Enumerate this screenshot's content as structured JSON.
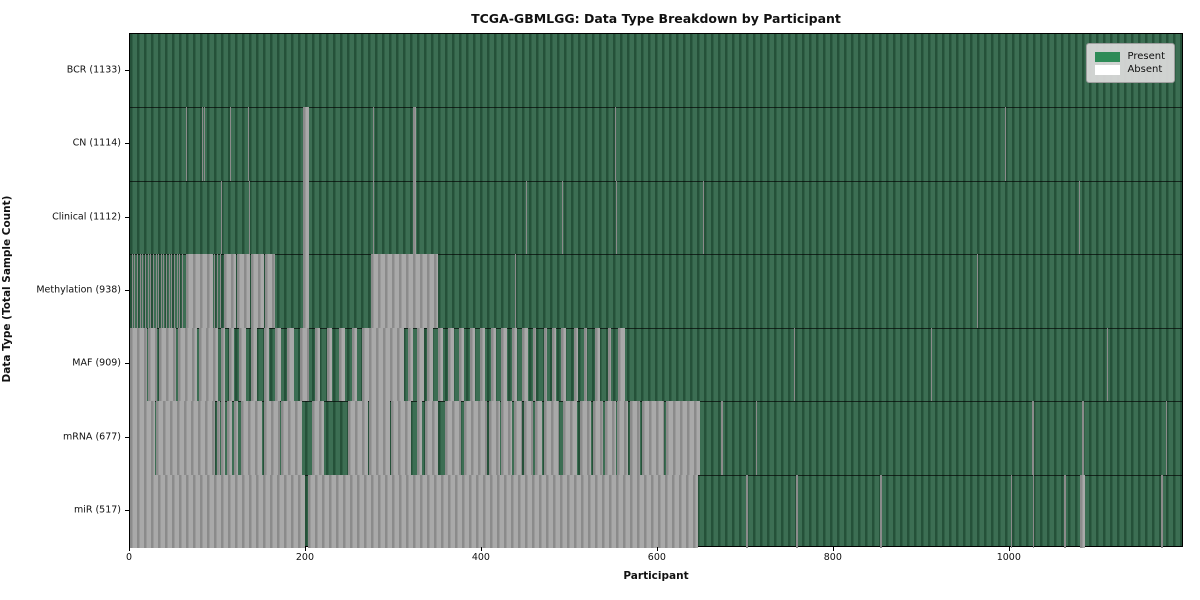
{
  "chart_data": {
    "type": "heatmap",
    "title": "TCGA-GBMLGG: Data Type Breakdown by Participant",
    "xlabel": "Participant",
    "ylabel": "Data Type (Total Sample Count)",
    "x_max": 1198,
    "x_ticks": [
      0,
      200,
      400,
      600,
      800,
      1000
    ],
    "grid": false,
    "legend_position": "upper right",
    "legend": [
      {
        "label": "Present",
        "color": "#2e8b57"
      },
      {
        "label": "Absent",
        "color": "#ffffff"
      }
    ],
    "colors": {
      "present_light": "#3c6e53",
      "present_dark": "#255139",
      "absent_light": "#a9a9a9",
      "absent_dark": "#8b8b8b"
    },
    "rows": [
      {
        "label": "BCR (1133)",
        "data_type": "BCR",
        "count": 1133,
        "absent_intervals": []
      },
      {
        "label": "CN (1114)",
        "data_type": "CN",
        "count": 1114,
        "absent_intervals": [
          [
            64,
            65
          ],
          [
            82,
            83
          ],
          [
            84,
            85
          ],
          [
            114,
            115
          ],
          [
            134,
            135
          ],
          [
            197,
            203
          ],
          [
            276,
            277
          ],
          [
            322,
            325
          ],
          [
            551,
            552
          ],
          [
            995,
            996
          ]
        ]
      },
      {
        "label": "Clinical (1112)",
        "data_type": "Clinical",
        "count": 1112,
        "absent_intervals": [
          [
            104,
            105
          ],
          [
            135,
            136
          ],
          [
            197,
            203
          ],
          [
            276,
            277
          ],
          [
            322,
            325
          ],
          [
            450,
            451
          ],
          [
            491,
            492
          ],
          [
            552,
            553
          ],
          [
            651,
            652
          ],
          [
            1079,
            1080
          ]
        ]
      },
      {
        "label": "Methylation (938)",
        "data_type": "Methylation",
        "count": 938,
        "absent_intervals": [
          [
            2,
            3
          ],
          [
            5,
            6
          ],
          [
            8,
            9
          ],
          [
            11,
            12
          ],
          [
            14,
            15
          ],
          [
            17,
            18
          ],
          [
            20,
            21
          ],
          [
            23,
            24
          ],
          [
            26,
            27
          ],
          [
            29,
            30
          ],
          [
            32,
            33
          ],
          [
            35,
            36
          ],
          [
            38,
            39
          ],
          [
            41,
            42
          ],
          [
            44,
            45
          ],
          [
            47,
            48
          ],
          [
            50,
            51
          ],
          [
            53,
            54
          ],
          [
            56,
            57
          ],
          [
            59,
            60
          ],
          [
            64,
            94
          ],
          [
            96,
            97
          ],
          [
            99,
            100
          ],
          [
            102,
            103
          ],
          [
            107,
            120
          ],
          [
            122,
            136
          ],
          [
            138,
            152
          ],
          [
            154,
            165
          ],
          [
            197,
            203
          ],
          [
            274,
            350
          ],
          [
            438,
            439
          ],
          [
            963,
            964
          ]
        ]
      },
      {
        "label": "MAF (909)",
        "data_type": "MAF",
        "count": 909,
        "absent_intervals": [
          [
            0,
            19
          ],
          [
            21,
            31
          ],
          [
            33,
            52
          ],
          [
            54,
            76
          ],
          [
            78,
            100
          ],
          [
            104,
            108
          ],
          [
            113,
            118
          ],
          [
            124,
            132
          ],
          [
            138,
            144
          ],
          [
            152,
            158
          ],
          [
            165,
            172
          ],
          [
            179,
            186
          ],
          [
            193,
            203
          ],
          [
            210,
            216
          ],
          [
            224,
            230
          ],
          [
            238,
            244
          ],
          [
            252,
            258
          ],
          [
            264,
            312
          ],
          [
            316,
            322
          ],
          [
            326,
            334
          ],
          [
            338,
            344
          ],
          [
            350,
            356
          ],
          [
            362,
            368
          ],
          [
            374,
            380
          ],
          [
            386,
            392
          ],
          [
            398,
            404
          ],
          [
            410,
            416
          ],
          [
            422,
            428
          ],
          [
            434,
            440
          ],
          [
            446,
            452
          ],
          [
            458,
            462
          ],
          [
            470,
            474
          ],
          [
            480,
            484
          ],
          [
            490,
            496
          ],
          [
            505,
            509
          ],
          [
            516,
            520
          ],
          [
            528,
            534
          ],
          [
            543,
            547
          ],
          [
            555,
            563
          ],
          [
            755,
            756
          ],
          [
            911,
            912
          ],
          [
            1110,
            1111
          ]
        ]
      },
      {
        "label": "mRNA (677)",
        "data_type": "mRNA",
        "count": 677,
        "absent_intervals": [
          [
            0,
            28
          ],
          [
            30,
            97
          ],
          [
            99,
            102
          ],
          [
            104,
            108
          ],
          [
            110,
            116
          ],
          [
            118,
            123
          ],
          [
            126,
            150
          ],
          [
            152,
            170
          ],
          [
            172,
            195
          ],
          [
            207,
            221
          ],
          [
            248,
            270
          ],
          [
            272,
            295
          ],
          [
            297,
            319
          ],
          [
            326,
            332
          ],
          [
            335,
            350
          ],
          [
            358,
            376
          ],
          [
            380,
            406
          ],
          [
            408,
            420
          ],
          [
            422,
            434
          ],
          [
            436,
            446
          ],
          [
            448,
            458
          ],
          [
            460,
            468
          ],
          [
            471,
            488
          ],
          [
            492,
            508
          ],
          [
            512,
            524
          ],
          [
            526,
            538
          ],
          [
            540,
            552
          ],
          [
            554,
            566
          ],
          [
            568,
            580
          ],
          [
            582,
            607
          ],
          [
            609,
            648
          ],
          [
            672,
            674
          ],
          [
            711,
            713
          ],
          [
            1025,
            1027
          ],
          [
            1082,
            1084
          ],
          [
            1177,
            1179
          ]
        ]
      },
      {
        "label": "miR (517)",
        "data_type": "miR",
        "count": 517,
        "absent_intervals": [
          [
            0,
            199
          ],
          [
            202,
            646
          ],
          [
            700,
            702
          ],
          [
            757,
            759
          ],
          [
            853,
            855
          ],
          [
            1001,
            1003
          ],
          [
            1026,
            1028
          ],
          [
            1062,
            1064
          ],
          [
            1080,
            1086
          ],
          [
            1172,
            1174
          ]
        ]
      }
    ]
  }
}
